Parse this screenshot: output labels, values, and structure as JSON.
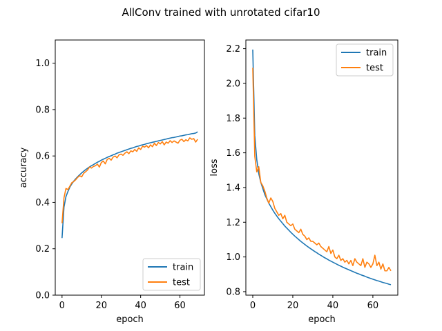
{
  "figure": {
    "title": "AllConv trained with unrotated cifar10"
  },
  "chart_data": [
    {
      "type": "line",
      "xlabel": "epoch",
      "ylabel": "accuracy",
      "xlim": [
        -3.45,
        72.45
      ],
      "ylim": [
        0.0,
        1.1
      ],
      "xticks": [
        0,
        20,
        40,
        60
      ],
      "yticks": [
        0.0,
        0.2,
        0.4,
        0.6,
        0.8,
        1.0
      ],
      "ytick_labels": [
        "0.0",
        "0.2",
        "0.4",
        "0.6",
        "0.8",
        "1.0"
      ],
      "legend": "lower-right",
      "series": [
        {
          "name": "train",
          "color": "#1f77b4",
          "x": [
            0,
            1,
            2,
            3,
            4,
            5,
            6,
            7,
            8,
            9,
            10,
            11,
            12,
            13,
            14,
            15,
            16,
            17,
            18,
            19,
            20,
            21,
            22,
            23,
            24,
            25,
            26,
            27,
            28,
            29,
            30,
            31,
            32,
            33,
            34,
            35,
            36,
            37,
            38,
            39,
            40,
            41,
            42,
            43,
            44,
            45,
            46,
            47,
            48,
            49,
            50,
            51,
            52,
            53,
            54,
            55,
            56,
            57,
            58,
            59,
            60,
            61,
            62,
            63,
            64,
            65,
            66,
            67,
            68,
            69
          ],
          "y": [
            0.246,
            0.38,
            0.425,
            0.447,
            0.466,
            0.48,
            0.492,
            0.502,
            0.511,
            0.519,
            0.527,
            0.534,
            0.541,
            0.547,
            0.553,
            0.558,
            0.563,
            0.568,
            0.573,
            0.577,
            0.582,
            0.586,
            0.59,
            0.594,
            0.598,
            0.601,
            0.605,
            0.608,
            0.612,
            0.615,
            0.618,
            0.621,
            0.624,
            0.627,
            0.63,
            0.633,
            0.635,
            0.638,
            0.641,
            0.643,
            0.646,
            0.648,
            0.65,
            0.653,
            0.655,
            0.657,
            0.659,
            0.661,
            0.663,
            0.665,
            0.667,
            0.669,
            0.671,
            0.673,
            0.675,
            0.677,
            0.679,
            0.68,
            0.682,
            0.684,
            0.686,
            0.687,
            0.689,
            0.691,
            0.692,
            0.694,
            0.696,
            0.697,
            0.699,
            0.704
          ]
        },
        {
          "name": "test",
          "color": "#ff7f0e",
          "x": [
            0,
            1,
            2,
            3,
            4,
            5,
            6,
            7,
            8,
            9,
            10,
            11,
            12,
            13,
            14,
            15,
            16,
            17,
            18,
            19,
            20,
            21,
            22,
            23,
            24,
            25,
            26,
            27,
            28,
            29,
            30,
            31,
            32,
            33,
            34,
            35,
            36,
            37,
            38,
            39,
            40,
            41,
            42,
            43,
            44,
            45,
            46,
            47,
            48,
            49,
            50,
            51,
            52,
            53,
            54,
            55,
            56,
            57,
            58,
            59,
            60,
            61,
            62,
            63,
            64,
            65,
            66,
            67,
            68,
            69
          ],
          "y": [
            0.31,
            0.42,
            0.46,
            0.455,
            0.47,
            0.485,
            0.49,
            0.498,
            0.508,
            0.515,
            0.51,
            0.525,
            0.532,
            0.54,
            0.552,
            0.548,
            0.555,
            0.558,
            0.565,
            0.552,
            0.572,
            0.578,
            0.566,
            0.585,
            0.59,
            0.582,
            0.595,
            0.6,
            0.592,
            0.605,
            0.608,
            0.603,
            0.612,
            0.618,
            0.61,
            0.622,
            0.618,
            0.628,
            0.62,
            0.635,
            0.628,
            0.642,
            0.638,
            0.645,
            0.635,
            0.648,
            0.64,
            0.655,
            0.645,
            0.658,
            0.652,
            0.662,
            0.648,
            0.66,
            0.655,
            0.666,
            0.658,
            0.665,
            0.66,
            0.655,
            0.668,
            0.672,
            0.662,
            0.67,
            0.665,
            0.678,
            0.672,
            0.675,
            0.66,
            0.672
          ]
        }
      ]
    },
    {
      "type": "line",
      "xlabel": "epoch",
      "ylabel": "loss",
      "xlim": [
        -3.45,
        72.45
      ],
      "ylim": [
        0.78,
        2.25
      ],
      "xticks": [
        0,
        20,
        40,
        60
      ],
      "yticks": [
        0.8,
        1.0,
        1.2,
        1.4,
        1.6,
        1.8,
        2.0,
        2.2
      ],
      "ytick_labels": [
        "0.8",
        "1.0",
        "1.2",
        "1.4",
        "1.6",
        "1.8",
        "2.0",
        "2.2"
      ],
      "legend": "top-right",
      "series": [
        {
          "name": "train",
          "color": "#1f77b4",
          "x": [
            0,
            1,
            2,
            3,
            4,
            5,
            6,
            7,
            8,
            9,
            10,
            11,
            12,
            13,
            14,
            15,
            16,
            17,
            18,
            19,
            20,
            21,
            22,
            23,
            24,
            25,
            26,
            27,
            28,
            29,
            30,
            31,
            32,
            33,
            34,
            35,
            36,
            37,
            38,
            39,
            40,
            41,
            42,
            43,
            44,
            45,
            46,
            47,
            48,
            49,
            50,
            51,
            52,
            53,
            54,
            55,
            56,
            57,
            58,
            59,
            60,
            61,
            62,
            63,
            64,
            65,
            66,
            67,
            68,
            69
          ],
          "y": [
            2.195,
            1.7,
            1.56,
            1.48,
            1.43,
            1.395,
            1.36,
            1.335,
            1.31,
            1.29,
            1.27,
            1.252,
            1.236,
            1.22,
            1.206,
            1.192,
            1.178,
            1.166,
            1.154,
            1.142,
            1.131,
            1.12,
            1.11,
            1.1,
            1.09,
            1.081,
            1.072,
            1.063,
            1.055,
            1.047,
            1.039,
            1.031,
            1.024,
            1.016,
            1.009,
            1.002,
            0.995,
            0.989,
            0.982,
            0.976,
            0.97,
            0.964,
            0.958,
            0.952,
            0.947,
            0.941,
            0.936,
            0.931,
            0.926,
            0.921,
            0.916,
            0.911,
            0.906,
            0.902,
            0.897,
            0.893,
            0.889,
            0.884,
            0.88,
            0.876,
            0.872,
            0.868,
            0.864,
            0.861,
            0.857,
            0.853,
            0.85,
            0.847,
            0.843,
            0.84
          ]
        },
        {
          "name": "test",
          "color": "#ff7f0e",
          "x": [
            0,
            1,
            2,
            3,
            4,
            5,
            6,
            7,
            8,
            9,
            10,
            11,
            12,
            13,
            14,
            15,
            16,
            17,
            18,
            19,
            20,
            21,
            22,
            23,
            24,
            25,
            26,
            27,
            28,
            29,
            30,
            31,
            32,
            33,
            34,
            35,
            36,
            37,
            38,
            39,
            40,
            41,
            42,
            43,
            44,
            45,
            46,
            47,
            48,
            49,
            50,
            51,
            52,
            53,
            54,
            55,
            56,
            57,
            58,
            59,
            60,
            61,
            62,
            63,
            64,
            65,
            66,
            67,
            68,
            69
          ],
          "y": [
            2.09,
            1.58,
            1.49,
            1.52,
            1.43,
            1.41,
            1.38,
            1.34,
            1.31,
            1.34,
            1.32,
            1.28,
            1.26,
            1.24,
            1.25,
            1.22,
            1.24,
            1.2,
            1.19,
            1.18,
            1.19,
            1.16,
            1.15,
            1.14,
            1.16,
            1.13,
            1.12,
            1.1,
            1.11,
            1.09,
            1.09,
            1.08,
            1.07,
            1.08,
            1.06,
            1.05,
            1.04,
            1.03,
            1.06,
            1.02,
            1.04,
            1.0,
            0.99,
            1.01,
            0.98,
            0.99,
            0.97,
            0.98,
            0.96,
            0.98,
            0.95,
            0.99,
            0.97,
            0.96,
            0.95,
            0.99,
            0.94,
            0.97,
            0.96,
            0.94,
            0.96,
            1.01,
            0.95,
            0.97,
            0.93,
            0.96,
            0.92,
            0.92,
            0.94,
            0.92
          ]
        }
      ]
    }
  ]
}
